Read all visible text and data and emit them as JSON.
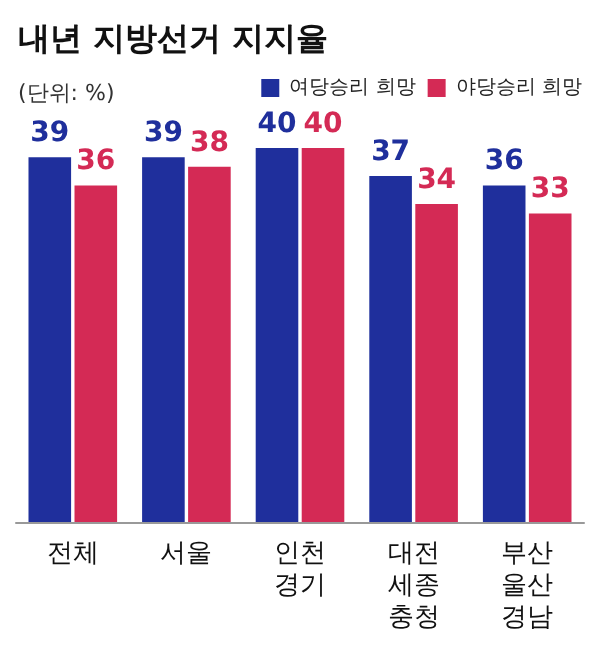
{
  "chart_data": {
    "type": "bar",
    "title": "내년 지방선거 지지율",
    "subtitle": "(단위: %)",
    "categories": [
      "전체",
      "서울",
      "인천\n경기",
      "대전\n세종\n충청",
      "부산\n울산\n경남"
    ],
    "series": [
      {
        "name": "여당승리 희망",
        "color": "#1f2f9c",
        "values": [
          39,
          39,
          40,
          37,
          36
        ]
      },
      {
        "name": "야당승리 희망",
        "color": "#d42a55",
        "values": [
          36,
          38,
          40,
          34,
          33
        ]
      }
    ],
    "data_labels": true,
    "legend": "top right"
  }
}
